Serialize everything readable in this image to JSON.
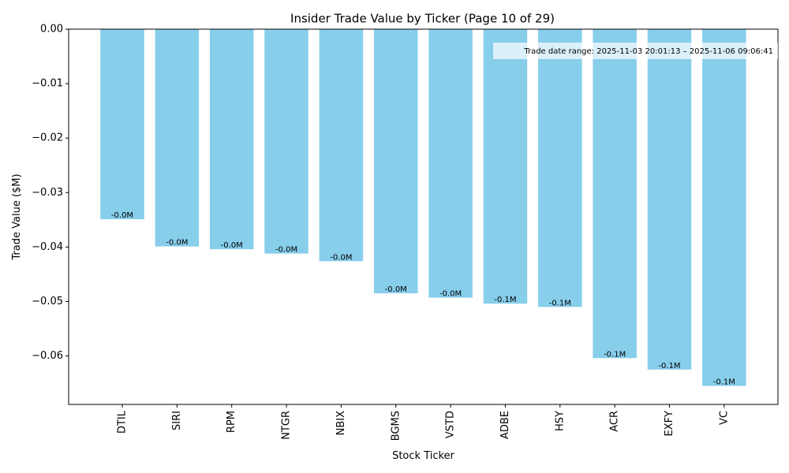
{
  "chart_data": {
    "type": "bar",
    "title": "Insider Trade Value by Ticker (Page 10 of 29)",
    "xlabel": "Stock Ticker",
    "ylabel": "Trade Value ($M)",
    "ylim": [
      -0.0689,
      0.0
    ],
    "yticks": [
      0.0,
      -0.01,
      -0.02,
      -0.03,
      -0.04,
      -0.05,
      -0.06
    ],
    "ytick_labels": [
      "0.00",
      "−0.01",
      "−0.02",
      "−0.03",
      "−0.04",
      "−0.05",
      "−0.06"
    ],
    "categories": [
      "DTIL",
      "SIRI",
      "RPM",
      "NTGR",
      "NBIX",
      "BGMS",
      "VSTD",
      "ADBE",
      "HSY",
      "ACR",
      "EXFY",
      "VC"
    ],
    "values": [
      -0.0349,
      -0.0399,
      -0.0404,
      -0.0412,
      -0.0426,
      -0.0485,
      -0.0493,
      -0.0504,
      -0.051,
      -0.0604,
      -0.0625,
      -0.0655
    ],
    "data_labels": [
      "-0.0M",
      "-0.0M",
      "-0.0M",
      "-0.0M",
      "-0.0M",
      "-0.0M",
      "-0.0M",
      "-0.1M",
      "-0.1M",
      "-0.1M",
      "-0.1M",
      "-0.1M"
    ],
    "annotation": "Trade date range: 2025-11-03 20:01:13 – 2025-11-06 09:06:41",
    "grid": false,
    "bar_color": "#87ceeb"
  }
}
